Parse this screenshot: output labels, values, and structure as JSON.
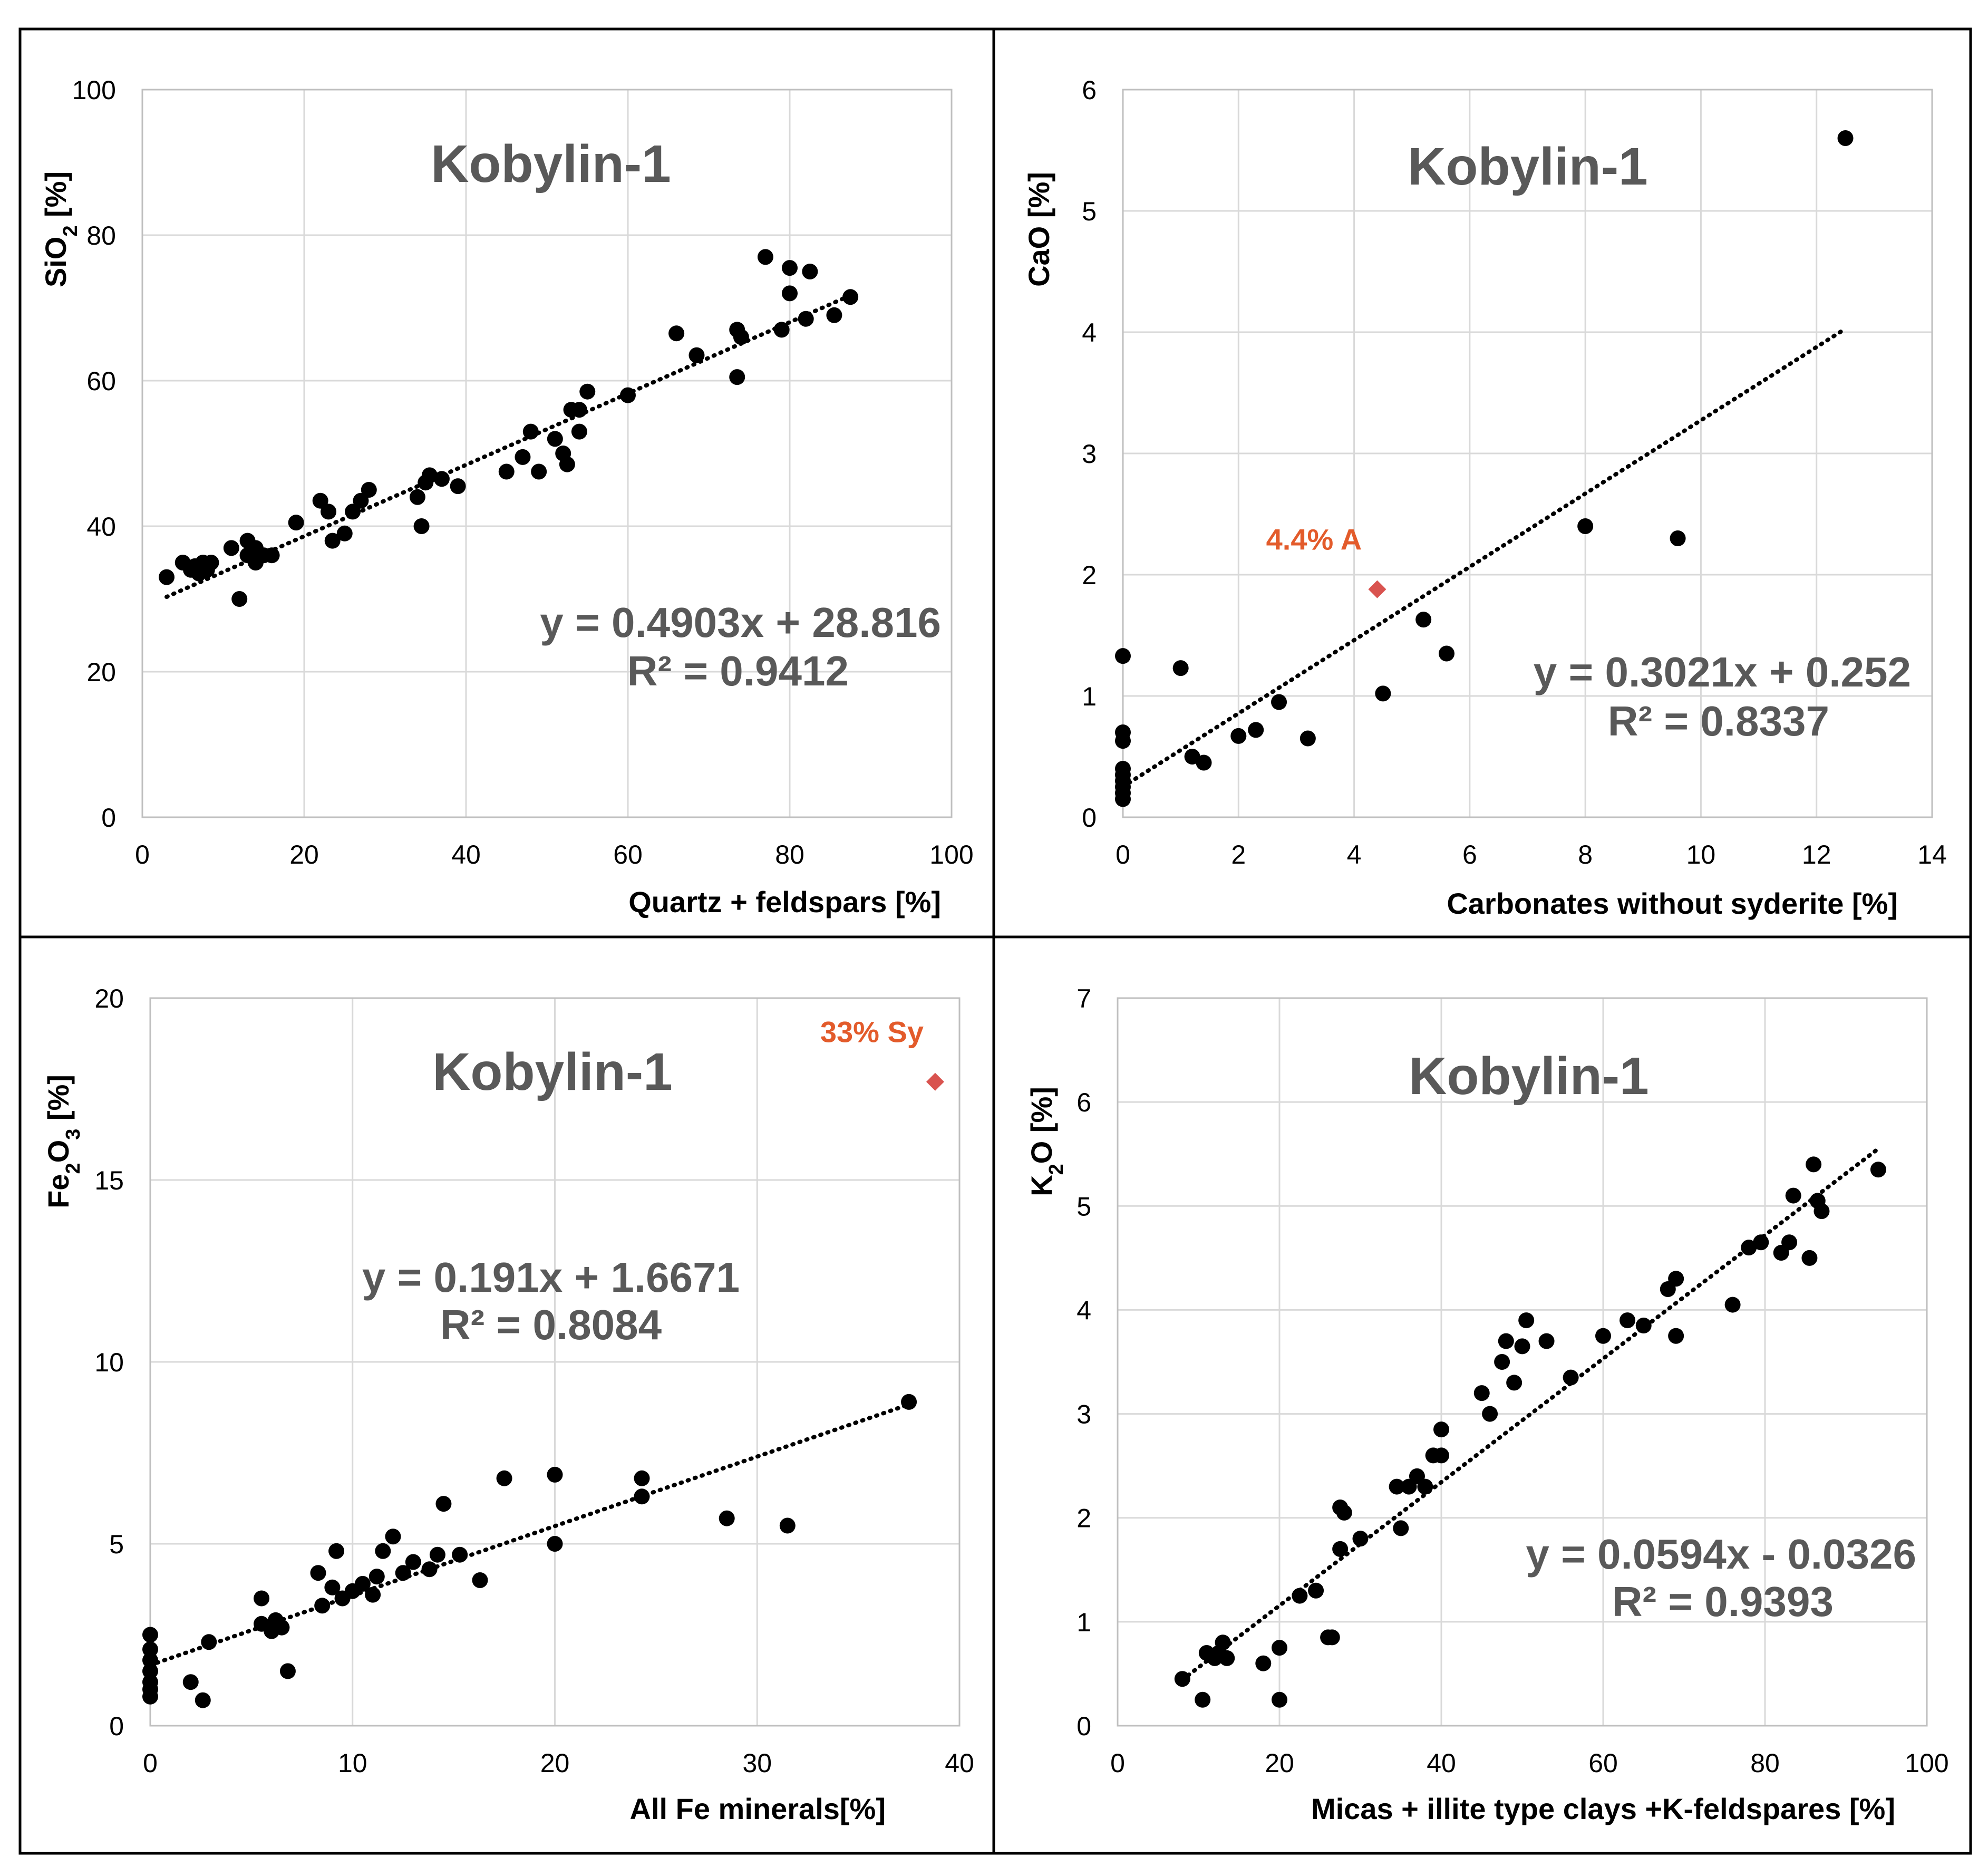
{
  "chart_data": [
    {
      "type": "scatter",
      "title": "Kobylin-1",
      "xlabel": "Quartz + feldspars [%]",
      "ylabel_main": "SiO",
      "ylabel_sub": "2",
      "ylabel_tail": " [%]",
      "xlim": [
        0,
        100
      ],
      "ylim": [
        0,
        100
      ],
      "x_ticks": [
        0,
        20,
        40,
        60,
        80,
        100
      ],
      "y_ticks": [
        0,
        20,
        40,
        60,
        80,
        100
      ],
      "grid": true,
      "equation": "y = 0.4903x + 28.816",
      "r_squared": "R² = 0.9412",
      "trendline": {
        "slope": 0.4903,
        "intercept": 28.816,
        "x_range": [
          3,
          88
        ]
      },
      "marker_color": "#000000",
      "points": [
        [
          3,
          33
        ],
        [
          5,
          35
        ],
        [
          6,
          34
        ],
        [
          6.5,
          34.5
        ],
        [
          7,
          33.5
        ],
        [
          7.5,
          35
        ],
        [
          8,
          34
        ],
        [
          8.5,
          35
        ],
        [
          11,
          37
        ],
        [
          12,
          30
        ],
        [
          13,
          38
        ],
        [
          13,
          36
        ],
        [
          14,
          37
        ],
        [
          14,
          35
        ],
        [
          15,
          36
        ],
        [
          16,
          36
        ],
        [
          19,
          40.5
        ],
        [
          22,
          43.5
        ],
        [
          23,
          42
        ],
        [
          23.5,
          38
        ],
        [
          25,
          39
        ],
        [
          26,
          42
        ],
        [
          27,
          43.5
        ],
        [
          28,
          45
        ],
        [
          34,
          44
        ],
        [
          34.5,
          40
        ],
        [
          35,
          46
        ],
        [
          35.5,
          47
        ],
        [
          37,
          46.5
        ],
        [
          39,
          45.5
        ],
        [
          45,
          47.5
        ],
        [
          47,
          49.5
        ],
        [
          48,
          53
        ],
        [
          49,
          47.5
        ],
        [
          51,
          52
        ],
        [
          52,
          50
        ],
        [
          52.5,
          48.5
        ],
        [
          53,
          56
        ],
        [
          54,
          53
        ],
        [
          54,
          56
        ],
        [
          55,
          58.5
        ],
        [
          60,
          58
        ],
        [
          66,
          66.5
        ],
        [
          68.5,
          63.5
        ],
        [
          73.5,
          67
        ],
        [
          73.5,
          60.5
        ],
        [
          74,
          66
        ],
        [
          77,
          77
        ],
        [
          79,
          67
        ],
        [
          80,
          75.5
        ],
        [
          80,
          72
        ],
        [
          82,
          68.5
        ],
        [
          82.5,
          75
        ],
        [
          85.5,
          69
        ],
        [
          87.5,
          71.5
        ]
      ]
    },
    {
      "type": "scatter",
      "title": "Kobylin-1",
      "xlabel": "Carbonates without syderite [%]",
      "ylabel_main": "CaO",
      "ylabel_sub": "",
      "ylabel_tail": " [%]",
      "xlim": [
        0,
        14
      ],
      "ylim": [
        0,
        6
      ],
      "x_ticks": [
        0,
        2,
        4,
        6,
        8,
        10,
        12,
        14
      ],
      "y_ticks": [
        0,
        1,
        2,
        3,
        4,
        5,
        6
      ],
      "grid": true,
      "equation": "y = 0.3021x + 0.252",
      "r_squared": "R² = 0.8337",
      "trendline": {
        "slope": 0.3021,
        "intercept": 0.252,
        "x_range": [
          0,
          12.5
        ]
      },
      "marker_color": "#000000",
      "points": [
        [
          0,
          1.33
        ],
        [
          0,
          0.7
        ],
        [
          0,
          0.63
        ],
        [
          0,
          0.4
        ],
        [
          0,
          0.35
        ],
        [
          0,
          0.3
        ],
        [
          0,
          0.25
        ],
        [
          0,
          0.2
        ],
        [
          0,
          0.15
        ],
        [
          1,
          1.23
        ],
        [
          1.2,
          0.5
        ],
        [
          1.4,
          0.45
        ],
        [
          2,
          0.67
        ],
        [
          2.3,
          0.72
        ],
        [
          2.7,
          0.95
        ],
        [
          3.2,
          0.65
        ],
        [
          4.5,
          1.02
        ],
        [
          5.2,
          1.63
        ],
        [
          5.6,
          1.35
        ],
        [
          8,
          2.4
        ],
        [
          9.6,
          2.3
        ],
        [
          12.5,
          5.6
        ]
      ],
      "outlier": {
        "x": 4.4,
        "y": 1.88,
        "label": "4.4% A",
        "color": "#d9534f"
      }
    },
    {
      "type": "scatter",
      "title": "Kobylin-1",
      "xlabel": "All Fe minerals[%]",
      "ylabel_main": "Fe",
      "ylabel_sub": "2",
      "ylabel_tail": "O",
      "ylabel_sub2": "3",
      "ylabel_tail2": " [%]",
      "xlim": [
        0,
        40
      ],
      "ylim": [
        0,
        20
      ],
      "x_ticks": [
        0,
        10,
        20,
        30,
        40
      ],
      "y_ticks": [
        0,
        5,
        10,
        15,
        20
      ],
      "grid": true,
      "equation": "y = 0.191x + 1.6671",
      "r_squared": "R² = 0.8084",
      "trendline": {
        "slope": 0.191,
        "intercept": 1.6671,
        "x_range": [
          0,
          37.5
        ]
      },
      "marker_color": "#000000",
      "points": [
        [
          0,
          2.5
        ],
        [
          0,
          2.1
        ],
        [
          0,
          1.8
        ],
        [
          0,
          1.5
        ],
        [
          0,
          1.2
        ],
        [
          0,
          1
        ],
        [
          0,
          0.8
        ],
        [
          2,
          1.2
        ],
        [
          2.6,
          0.7
        ],
        [
          2.9,
          2.3
        ],
        [
          5.5,
          3.5
        ],
        [
          5.5,
          2.8
        ],
        [
          6,
          2.6
        ],
        [
          6.2,
          2.9
        ],
        [
          6.5,
          2.7
        ],
        [
          6.8,
          1.5
        ],
        [
          8.3,
          4.2
        ],
        [
          8.5,
          3.3
        ],
        [
          9,
          3.8
        ],
        [
          9.2,
          4.8
        ],
        [
          9.5,
          3.5
        ],
        [
          10,
          3.7
        ],
        [
          10.5,
          3.9
        ],
        [
          11,
          3.6
        ],
        [
          11.2,
          4.1
        ],
        [
          11.5,
          4.8
        ],
        [
          12,
          5.2
        ],
        [
          12.5,
          4.2
        ],
        [
          13,
          4.5
        ],
        [
          13.8,
          4.3
        ],
        [
          14.2,
          4.7
        ],
        [
          14.5,
          6.1
        ],
        [
          15.3,
          4.7
        ],
        [
          16.3,
          4
        ],
        [
          17.5,
          6.8
        ],
        [
          20,
          6.9
        ],
        [
          20,
          5
        ],
        [
          24.3,
          6.8
        ],
        [
          24.3,
          6.3
        ],
        [
          28.5,
          5.7
        ],
        [
          31.5,
          5.5
        ],
        [
          37.5,
          8.9
        ]
      ],
      "outlier": {
        "x": 38.8,
        "y": 17.7,
        "label": "33% Sy",
        "color": "#d9534f"
      }
    },
    {
      "type": "scatter",
      "title": "Kobylin-1",
      "xlabel": "Micas + illite type clays +K-feldspares [%]",
      "ylabel_main": "K",
      "ylabel_sub": "2",
      "ylabel_tail": "O [%]",
      "xlim": [
        0,
        100
      ],
      "ylim": [
        0,
        7
      ],
      "x_ticks": [
        0,
        20,
        40,
        60,
        80,
        100
      ],
      "y_ticks": [
        0,
        1,
        2,
        3,
        4,
        5,
        6,
        7
      ],
      "grid": true,
      "equation": "y = 0.0594x - 0.0326",
      "r_squared": "R² = 0.9393",
      "trendline": {
        "slope": 0.0594,
        "intercept": -0.0326,
        "x_range": [
          8,
          94
        ]
      },
      "marker_color": "#000000",
      "points": [
        [
          8,
          0.45
        ],
        [
          10.5,
          0.25
        ],
        [
          11,
          0.7
        ],
        [
          12,
          0.65
        ],
        [
          12.5,
          0.7
        ],
        [
          13,
          0.8
        ],
        [
          13.5,
          0.65
        ],
        [
          18,
          0.6
        ],
        [
          20,
          0.25
        ],
        [
          20,
          0.75
        ],
        [
          22.5,
          1.25
        ],
        [
          24.5,
          1.3
        ],
        [
          26,
          0.85
        ],
        [
          26.5,
          0.85
        ],
        [
          27.5,
          1.7
        ],
        [
          27.5,
          2.1
        ],
        [
          28,
          2.05
        ],
        [
          30,
          1.8
        ],
        [
          34.5,
          2.3
        ],
        [
          35,
          1.9
        ],
        [
          36,
          2.3
        ],
        [
          37,
          2.4
        ],
        [
          38,
          2.3
        ],
        [
          39,
          2.6
        ],
        [
          40,
          2.85
        ],
        [
          40,
          2.6
        ],
        [
          45,
          3.2
        ],
        [
          46,
          3
        ],
        [
          47.5,
          3.5
        ],
        [
          48,
          3.7
        ],
        [
          49,
          3.3
        ],
        [
          50,
          3.65
        ],
        [
          50.5,
          3.9
        ],
        [
          53,
          3.7
        ],
        [
          56,
          3.35
        ],
        [
          60,
          3.75
        ],
        [
          63,
          3.9
        ],
        [
          65,
          3.85
        ],
        [
          68,
          4.2
        ],
        [
          69,
          4.3
        ],
        [
          69,
          3.75
        ],
        [
          76,
          4.05
        ],
        [
          78,
          4.6
        ],
        [
          79.5,
          4.65
        ],
        [
          82,
          4.55
        ],
        [
          83,
          4.65
        ],
        [
          83.5,
          5.1
        ],
        [
          85.5,
          4.5
        ],
        [
          86,
          5.4
        ],
        [
          86.5,
          5.05
        ],
        [
          87,
          4.95
        ],
        [
          94,
          5.35
        ]
      ]
    }
  ]
}
